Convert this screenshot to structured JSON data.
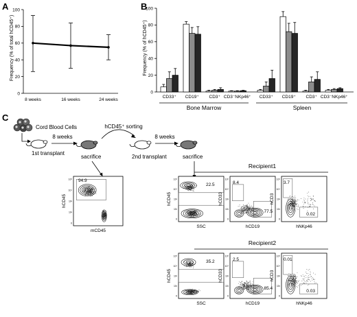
{
  "panels": {
    "A": {
      "label": "A",
      "chart_data": {
        "type": "line",
        "ylabel": "Frequency (% of total hCD45⁺)",
        "xlabel": "",
        "categories": [
          "8 weeks",
          "16 weeks",
          "24 weeks"
        ],
        "values": [
          60,
          57,
          55
        ],
        "error_high": [
          93,
          84,
          70
        ],
        "error_low": [
          26,
          30,
          40
        ],
        "ylim": [
          0,
          100
        ],
        "yticks": [
          "0",
          "20",
          "40",
          "60",
          "80",
          "100"
        ],
        "grid": false
      }
    },
    "B": {
      "label": "B",
      "chart_data": {
        "type": "bar",
        "ylabel": "Frequency (% of hCD45⁺)",
        "xlabel": "",
        "ylim": [
          0,
          100
        ],
        "yticks": [
          "0",
          "20",
          "40",
          "60",
          "80",
          "100"
        ],
        "groups": [
          {
            "name": "Bone Marrow",
            "categories": [
              "CD33⁺",
              "CD19⁺",
              "CD3⁺",
              "CD3⁻NKp46⁺"
            ],
            "values": [
              [
                6,
                16,
                20
              ],
              [
                81,
                70,
                69
              ],
              [
                1,
                2,
                3
              ],
              [
                1,
                1,
                1.5
              ]
            ],
            "errors": [
              [
                3,
                8,
                8
              ],
              [
                3,
                7,
                9
              ],
              [
                1,
                1,
                2
              ],
              [
                0.5,
                0.5,
                0.5
              ]
            ]
          },
          {
            "name": "Spleen",
            "categories": [
              "CD33⁺",
              "CD19⁺",
              "CD3⁺",
              "CD3⁻NKp46⁺"
            ],
            "values": [
              [
                2,
                7,
                16
              ],
              [
                90,
                72,
                70
              ],
              [
                1,
                12,
                15
              ],
              [
                2,
                3,
                4
              ]
            ],
            "errors": [
              [
                1,
                5,
                10
              ],
              [
                6,
                10,
                13
              ],
              [
                1,
                6,
                9
              ],
              [
                1,
                1,
                1
              ]
            ]
          }
        ],
        "bar_colors": [
          "#ffffff",
          "#8c8c8c",
          "#262626"
        ]
      }
    },
    "C": {
      "label": "C",
      "cord_blood": "Cord Blood Cells",
      "sorting": "hCD45⁺ sorting",
      "weeks1": "8 weeks",
      "weeks2": "8 weeks",
      "first_transplant": "1st transplant",
      "sacrifice1": "sacrifice",
      "second_transplant": "2nd transplant",
      "sacrifice2": "sacrifice",
      "primary_plot": {
        "ylabel": "hCD45",
        "xlabel": "mCD45",
        "gate": "94.9"
      },
      "recipients": [
        {
          "title": "Recipient1",
          "plots": [
            {
              "ylabel": "hCD45",
              "xlabel": "SSC",
              "gates": [
                "22.5"
              ]
            },
            {
              "ylabel": "hCD33",
              "xlabel": "hCD19",
              "gates": [
                "8.4",
                "77.5"
              ]
            },
            {
              "ylabel": "hCD3",
              "xlabel": "hNKp46",
              "gates": [
                "3.7",
                "0.02"
              ]
            }
          ]
        },
        {
          "title": "Recipient2",
          "plots": [
            {
              "ylabel": "hCD45",
              "xlabel": "SSC",
              "gates": [
                "35.2"
              ]
            },
            {
              "ylabel": "hCD33",
              "xlabel": "hCD19",
              "gates": [
                "2.5",
                "85.4"
              ]
            },
            {
              "ylabel": "hCD3",
              "xlabel": "hNKp46",
              "gates": [
                "0.01",
                "0.03"
              ]
            }
          ]
        }
      ]
    }
  }
}
